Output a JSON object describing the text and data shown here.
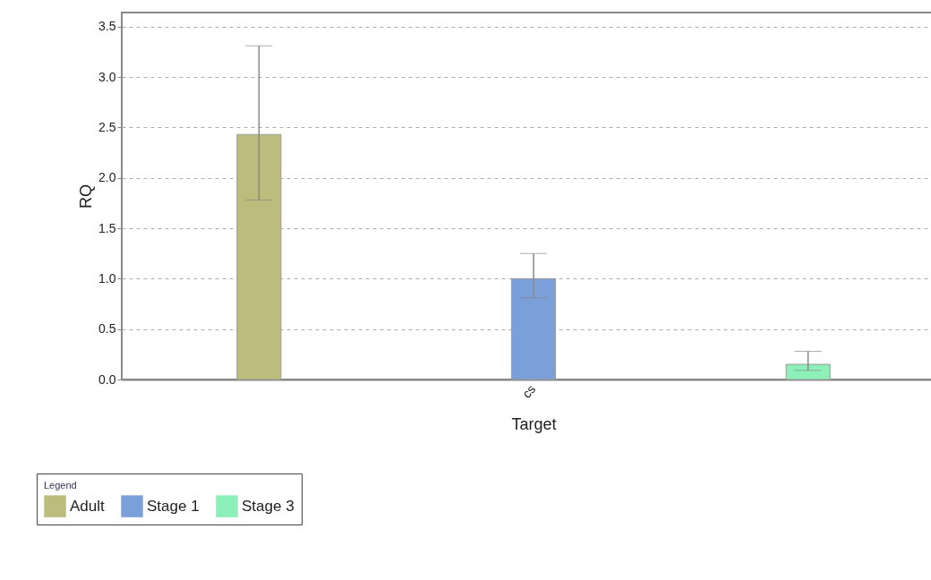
{
  "chart_data": {
    "type": "bar",
    "xlabel": "Target",
    "ylabel": "RQ",
    "categories": [
      "cs"
    ],
    "series": [
      {
        "name": "Adult",
        "color": "#bcbc7c",
        "values": [
          2.43
        ],
        "errors": [
          [
            1.78,
            3.31
          ]
        ]
      },
      {
        "name": "Stage 1",
        "color": "#7b9fd8",
        "values": [
          1.0
        ],
        "errors": [
          [
            0.81,
            1.25
          ]
        ]
      },
      {
        "name": "Stage 3",
        "color": "#8cf0b8",
        "values": [
          0.15
        ],
        "errors": [
          [
            0.09,
            0.28
          ]
        ]
      }
    ],
    "ylim": [
      0,
      3.64
    ],
    "yticks": [
      {
        "value": 0,
        "label": "0.0"
      },
      0.5,
      {
        "value": 1,
        "label": "1.0"
      },
      1.5,
      {
        "value": 2,
        "label": "2.0"
      },
      2.5,
      {
        "value": 3,
        "label": "3.0"
      },
      3.5
    ],
    "grid": "y",
    "legend": "bottom",
    "legend_title": "Legend"
  }
}
